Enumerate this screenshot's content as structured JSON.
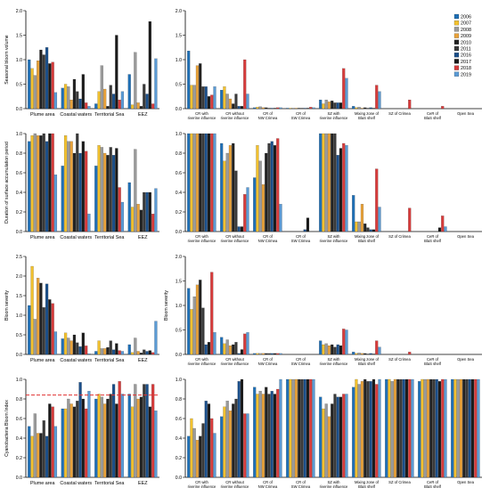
{
  "legend": {
    "years": [
      "2006",
      "2007",
      "2008",
      "2009",
      "2010",
      "2011",
      "2016",
      "2017",
      "2018",
      "2019"
    ],
    "colors": [
      "#1f6fb5",
      "#f2c12e",
      "#9a9a9a",
      "#e8a23a",
      "#222222",
      "#3a3a3a",
      "#1b4f8a",
      "#1a1a1a",
      "#d63b3b",
      "#5b9bd5"
    ]
  },
  "chart_data": [
    {
      "type": "bar",
      "panel": "A-left",
      "ylabel": "Seasonal bloom volume",
      "ylim": [
        0,
        2.0
      ],
      "yticks": [
        "0.0",
        "0.5",
        "1.0",
        "1.5",
        "2.0"
      ],
      "categories": [
        "Plume area",
        "Coastal waters",
        "Territorial Sea",
        "EEZ"
      ],
      "values": [
        [
          1.0,
          0.82,
          0.68,
          0.98,
          1.2,
          1.1,
          1.25,
          0.92,
          0.95,
          0.33
        ],
        [
          0.42,
          0.5,
          0.45,
          0.18,
          0.6,
          0.35,
          0.2,
          0.7,
          0.12,
          0.05
        ],
        [
          0.1,
          0.35,
          0.88,
          0.4,
          0.05,
          0.48,
          0.3,
          1.5,
          0.18,
          0.35
        ],
        [
          0.7,
          0.08,
          1.15,
          0.12,
          0.05,
          0.5,
          0.3,
          1.78,
          0.1,
          1.02
        ]
      ]
    },
    {
      "type": "bar",
      "panel": "A-right",
      "ylabel": "",
      "ylim": [
        0,
        2.0
      ],
      "yticks": [
        "0.0",
        "0.5",
        "1.0",
        "1.5",
        "2.0"
      ],
      "categories": [
        "CR with riverine influence",
        "CR without riverine influence",
        "CR of NW Crimea",
        "CR of SW Crimea",
        "SZ with riverine influence",
        "Mixing zone of BlaS shelf",
        "SZ of Crimea",
        "CeR of BlaS shelf",
        "Open Sea"
      ],
      "values": [
        [
          1.18,
          0.48,
          0.48,
          0.88,
          0.92,
          0.45,
          0.45,
          0.25,
          0.28,
          0.45
        ],
        [
          0.38,
          0.45,
          0.3,
          0.2,
          0.1,
          0.3,
          0.05,
          0.05,
          1.0,
          0.3
        ],
        [
          0.02,
          0.03,
          0.04,
          0.02,
          0.02,
          0.01,
          0.01,
          0.01,
          0.02,
          0.02
        ],
        [
          0.01,
          0.01,
          0.01,
          0.01,
          0.01,
          0.01,
          0.01,
          0.01,
          0.03,
          0.02
        ],
        [
          0.18,
          0.1,
          0.18,
          0.14,
          0.16,
          0.12,
          0.12,
          0.12,
          0.82,
          0.62
        ],
        [
          0.05,
          0.02,
          0.03,
          0.01,
          0.02,
          0.01,
          0.02,
          0.01,
          0.48,
          0.35
        ],
        [
          0,
          0,
          0,
          0,
          0,
          0,
          0,
          0,
          0.18,
          0
        ],
        [
          0,
          0,
          0,
          0,
          0,
          0,
          0,
          0,
          0.05,
          0
        ],
        [
          0,
          0,
          0,
          0,
          0,
          0,
          0,
          0,
          0,
          0
        ]
      ]
    },
    {
      "type": "bar",
      "panel": "B-left",
      "ylabel": "Duration of surface accumulation period",
      "ylim": [
        0,
        1.0
      ],
      "yticks": [
        "0.0",
        "0.2",
        "0.4",
        "0.6",
        "0.8",
        "1.0"
      ],
      "categories": [
        "Plume area",
        "Coastal waters",
        "Territorial Sea",
        "EEZ"
      ],
      "values": [
        [
          0.92,
          0.98,
          1.0,
          0.98,
          0.98,
          1.0,
          0.92,
          1.0,
          1.0,
          0.58
        ],
        [
          0.67,
          0.98,
          0.92,
          0.92,
          0.8,
          1.0,
          0.8,
          0.92,
          0.82,
          0.18
        ],
        [
          0.67,
          0.88,
          0.86,
          0.8,
          0.78,
          0.86,
          0.78,
          0.85,
          0.45,
          0.3
        ],
        [
          0.5,
          0.25,
          0.84,
          0.28,
          0.22,
          0.4,
          0.4,
          0.4,
          0.18,
          0.44
        ]
      ]
    },
    {
      "type": "bar",
      "panel": "B-right",
      "ylabel": "",
      "ylim": [
        0,
        1.0
      ],
      "yticks": [
        "0.0",
        "0.2",
        "0.4",
        "0.6",
        "0.8",
        "1.0"
      ],
      "categories": [
        "CR with riverine influence",
        "CR without riverine influence",
        "CR of NW Crimea",
        "CR of SW Crimea",
        "SZ with riverine influence",
        "Mixing zone of BlaS shelf",
        "SZ of Crimea",
        "CeR of BlaS shelf",
        "Open Sea"
      ],
      "values": [
        [
          1.0,
          1.0,
          1.0,
          1.0,
          1.0,
          1.0,
          1.0,
          1.0,
          1.0,
          1.0
        ],
        [
          0.9,
          0.72,
          0.8,
          0.88,
          0.9,
          0.62,
          0.05,
          0.05,
          0.38,
          0.45
        ],
        [
          0.55,
          0.88,
          0.72,
          0.48,
          0.8,
          0.9,
          0.92,
          0.88,
          0.95,
          0.28
        ],
        [
          0,
          0,
          0,
          0,
          0,
          0,
          0.02,
          0.14,
          0,
          0
        ],
        [
          1.0,
          1.0,
          1.0,
          1.0,
          1.0,
          1.0,
          0.78,
          0.85,
          0.9,
          0.88
        ],
        [
          0.37,
          0.1,
          0.1,
          0.28,
          0.08,
          0.04,
          0.02,
          0.02,
          0.64,
          0.25
        ],
        [
          0,
          0,
          0,
          0,
          0,
          0,
          0,
          0,
          0.24,
          0
        ],
        [
          0,
          0,
          0,
          0,
          0,
          0,
          0,
          0.04,
          0.16,
          0.05
        ],
        [
          0,
          0,
          0,
          0,
          0,
          0,
          0,
          0,
          0,
          0
        ]
      ]
    },
    {
      "type": "bar",
      "panel": "C-left",
      "ylabel": "Bloom severity",
      "ylim": [
        0,
        2.5
      ],
      "yticks": [
        "0.0",
        "0.5",
        "1.0",
        "1.5",
        "2.0",
        "2.5"
      ],
      "categories": [
        "Plume area",
        "Coastal waters",
        "Territorial Sea",
        "EEZ"
      ],
      "values": [
        [
          1.25,
          2.25,
          0.9,
          1.95,
          1.82,
          1.2,
          1.8,
          1.4,
          1.3,
          0.58
        ],
        [
          0.4,
          0.55,
          0.42,
          0.35,
          0.5,
          0.3,
          0.2,
          0.55,
          0.22,
          0.02
        ],
        [
          0.08,
          0.35,
          0.15,
          0.15,
          0.18,
          0.35,
          0.12,
          0.28,
          0.1,
          0.08
        ],
        [
          0.25,
          0.05,
          0.42,
          0.08,
          0.04,
          0.12,
          0.08,
          0.1,
          0.05,
          0.85
        ]
      ]
    },
    {
      "type": "bar",
      "panel": "C-right",
      "ylabel": "Bloom severity",
      "ylim": [
        0,
        2.0
      ],
      "yticks": [
        "0.0",
        "0.5",
        "1.0",
        "1.5",
        "2.0"
      ],
      "categories": [
        "CR with riverine influence",
        "CR without riverine influence",
        "CR of NW Crimea",
        "CR of SW Crimea",
        "SZ with riverine influence",
        "Mixing zone of BlaS shelf",
        "SZ of Crimea",
        "CeR of BlaS shelf",
        "Open Sea"
      ],
      "values": [
        [
          1.35,
          0.92,
          1.18,
          1.42,
          1.52,
          0.95,
          0.2,
          0.25,
          1.68,
          0.45
        ],
        [
          0.35,
          0.22,
          0.3,
          0.18,
          0.2,
          0.25,
          0.02,
          0.1,
          0.42,
          0.45
        ],
        [
          0.02,
          0.02,
          0.02,
          0.02,
          0.02,
          0.02,
          0.02,
          0.02,
          0.02,
          0.02
        ],
        [
          0,
          0,
          0,
          0,
          0,
          0,
          0,
          0,
          0,
          0
        ],
        [
          0.28,
          0.2,
          0.22,
          0.18,
          0.2,
          0.15,
          0.2,
          0.18,
          0.52,
          0.5
        ],
        [
          0.05,
          0.02,
          0.03,
          0.02,
          0.02,
          0.01,
          0.02,
          0.01,
          0.28,
          0.15
        ],
        [
          0,
          0,
          0,
          0,
          0,
          0,
          0,
          0,
          0.05,
          0
        ],
        [
          0,
          0,
          0,
          0,
          0,
          0,
          0,
          0,
          0,
          0
        ],
        [
          0,
          0,
          0,
          0,
          0,
          0,
          0,
          0,
          0,
          0
        ]
      ]
    },
    {
      "type": "bar",
      "panel": "D-left",
      "ylabel": "Cyanobacteria Bloom Index",
      "ylim": [
        0,
        1.0
      ],
      "yticks": [
        "0.0",
        "0.2",
        "0.4",
        "0.6",
        "0.8",
        "1.0"
      ],
      "reference_line": 0.84,
      "categories": [
        "Plume area",
        "Coastal waters",
        "Territorial Sea",
        "EEZ"
      ],
      "values": [
        [
          0.52,
          0.42,
          0.65,
          0.45,
          0.45,
          0.58,
          0.42,
          0.75,
          0.72,
          0.52
        ],
        [
          0.7,
          0.7,
          0.8,
          0.75,
          0.72,
          0.78,
          0.97,
          0.8,
          0.7,
          0.88
        ],
        [
          0.8,
          0.85,
          0.82,
          0.75,
          0.8,
          0.85,
          0.95,
          0.75,
          0.98,
          0.85
        ],
        [
          0.85,
          0.72,
          0.95,
          0.8,
          0.82,
          0.95,
          0.95,
          0.72,
          0.95,
          0.68
        ]
      ]
    },
    {
      "type": "bar",
      "panel": "D-right",
      "ylabel": "",
      "ylim": [
        0,
        1.0
      ],
      "yticks": [
        "0.0",
        "0.2",
        "0.4",
        "0.6",
        "0.8",
        "1.0"
      ],
      "categories": [
        "CR with riverine influence",
        "CR without riverine influence",
        "CR of NW Crimea",
        "CR of SW Crimea",
        "SZ with riverine influence",
        "Mixing zone of BlaS shelf",
        "SZ of Crimea",
        "CeR of BlaS shelf",
        "Open Sea"
      ],
      "values": [
        [
          0.42,
          0.6,
          0.5,
          0.38,
          0.42,
          0.55,
          0.78,
          0.75,
          0.6,
          0.45
        ],
        [
          0.62,
          0.72,
          0.78,
          0.68,
          0.75,
          0.8,
          0.98,
          1.0,
          0.65,
          0.65
        ],
        [
          0.92,
          0.85,
          0.88,
          0.85,
          0.92,
          0.85,
          0.88,
          0.85,
          0.9,
          1.0
        ],
        [
          1.0,
          1.0,
          1.0,
          1.0,
          1.0,
          1.0,
          1.0,
          1.0,
          1.0,
          1.0
        ],
        [
          0.82,
          0.7,
          0.75,
          0.62,
          0.75,
          0.85,
          0.82,
          0.82,
          0.85,
          0.85
        ],
        [
          0.92,
          1.0,
          0.95,
          0.98,
          1.0,
          0.98,
          0.98,
          1.0,
          0.95,
          1.0
        ],
        [
          1.0,
          1.0,
          0.98,
          1.0,
          1.0,
          1.0,
          1.0,
          1.0,
          1.0,
          1.0
        ],
        [
          0.98,
          1.0,
          1.0,
          1.0,
          1.0,
          1.0,
          1.0,
          0.98,
          1.0,
          1.0
        ],
        [
          1.0,
          1.0,
          1.0,
          1.0,
          1.0,
          1.0,
          1.0,
          1.0,
          1.0,
          1.0
        ]
      ]
    }
  ]
}
